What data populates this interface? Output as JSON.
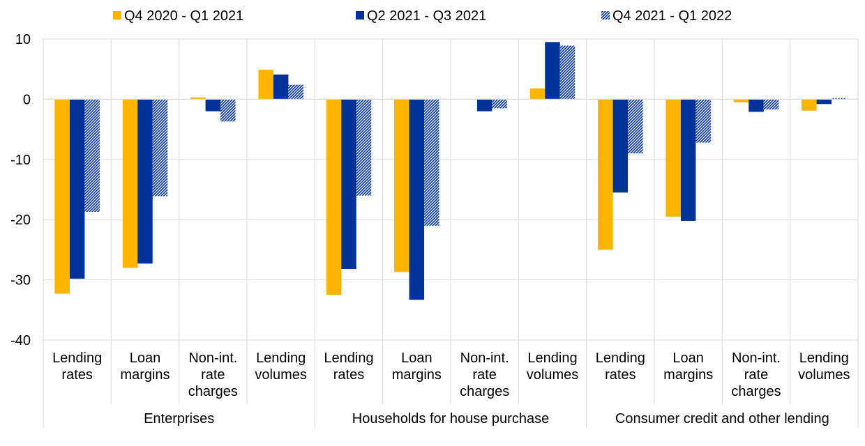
{
  "chart_data": {
    "type": "bar",
    "ylim": [
      -40,
      10
    ],
    "yticks": [
      "10",
      "0",
      "-10",
      "-20",
      "-30",
      "-40"
    ],
    "ytick_values": [
      10,
      0,
      -10,
      -20,
      -30,
      -40
    ],
    "grid": true,
    "legend_position": "top",
    "categories": [
      [
        "Lending",
        "rates"
      ],
      [
        "Loan",
        "margins"
      ],
      [
        "Non-int.",
        "rate",
        "charges"
      ],
      [
        "Lending",
        "volumes"
      ],
      [
        "Lending",
        "rates"
      ],
      [
        "Loan",
        "margins"
      ],
      [
        "Non-int.",
        "rate",
        "charges"
      ],
      [
        "Lending",
        "volumes"
      ],
      [
        "Lending",
        "rates"
      ],
      [
        "Loan",
        "margins"
      ],
      [
        "Non-int.",
        "rate",
        "charges"
      ],
      [
        "Lending",
        "volumes"
      ]
    ],
    "groups": [
      "Enterprises",
      "Households for house purchase",
      "Consumer credit and other lending"
    ],
    "series": [
      {
        "name": "Q4 2020 - Q1 2021",
        "color": "#FFB400",
        "pattern": "solid",
        "values": [
          -32.3,
          -28,
          0.3,
          4.9,
          -32.5,
          -28.7,
          0,
          1.8,
          -25,
          -19.5,
          -0.5,
          -1.9
        ]
      },
      {
        "name": "Q2 2021 - Q3 2021",
        "color": "#003299",
        "pattern": "solid",
        "values": [
          -29.8,
          -27.3,
          -2,
          4.1,
          -28.2,
          -33.3,
          -2,
          9.5,
          -15.5,
          -20.2,
          -2.1,
          -0.8
        ]
      },
      {
        "name": "Q4 2021 - Q1 2022",
        "color": "#003299",
        "pattern": "hatched",
        "values": [
          -18.7,
          -16.1,
          -3.7,
          2.4,
          -16,
          -21,
          -1.5,
          8.9,
          -9,
          -7.2,
          -1.7,
          0.2
        ]
      }
    ]
  }
}
